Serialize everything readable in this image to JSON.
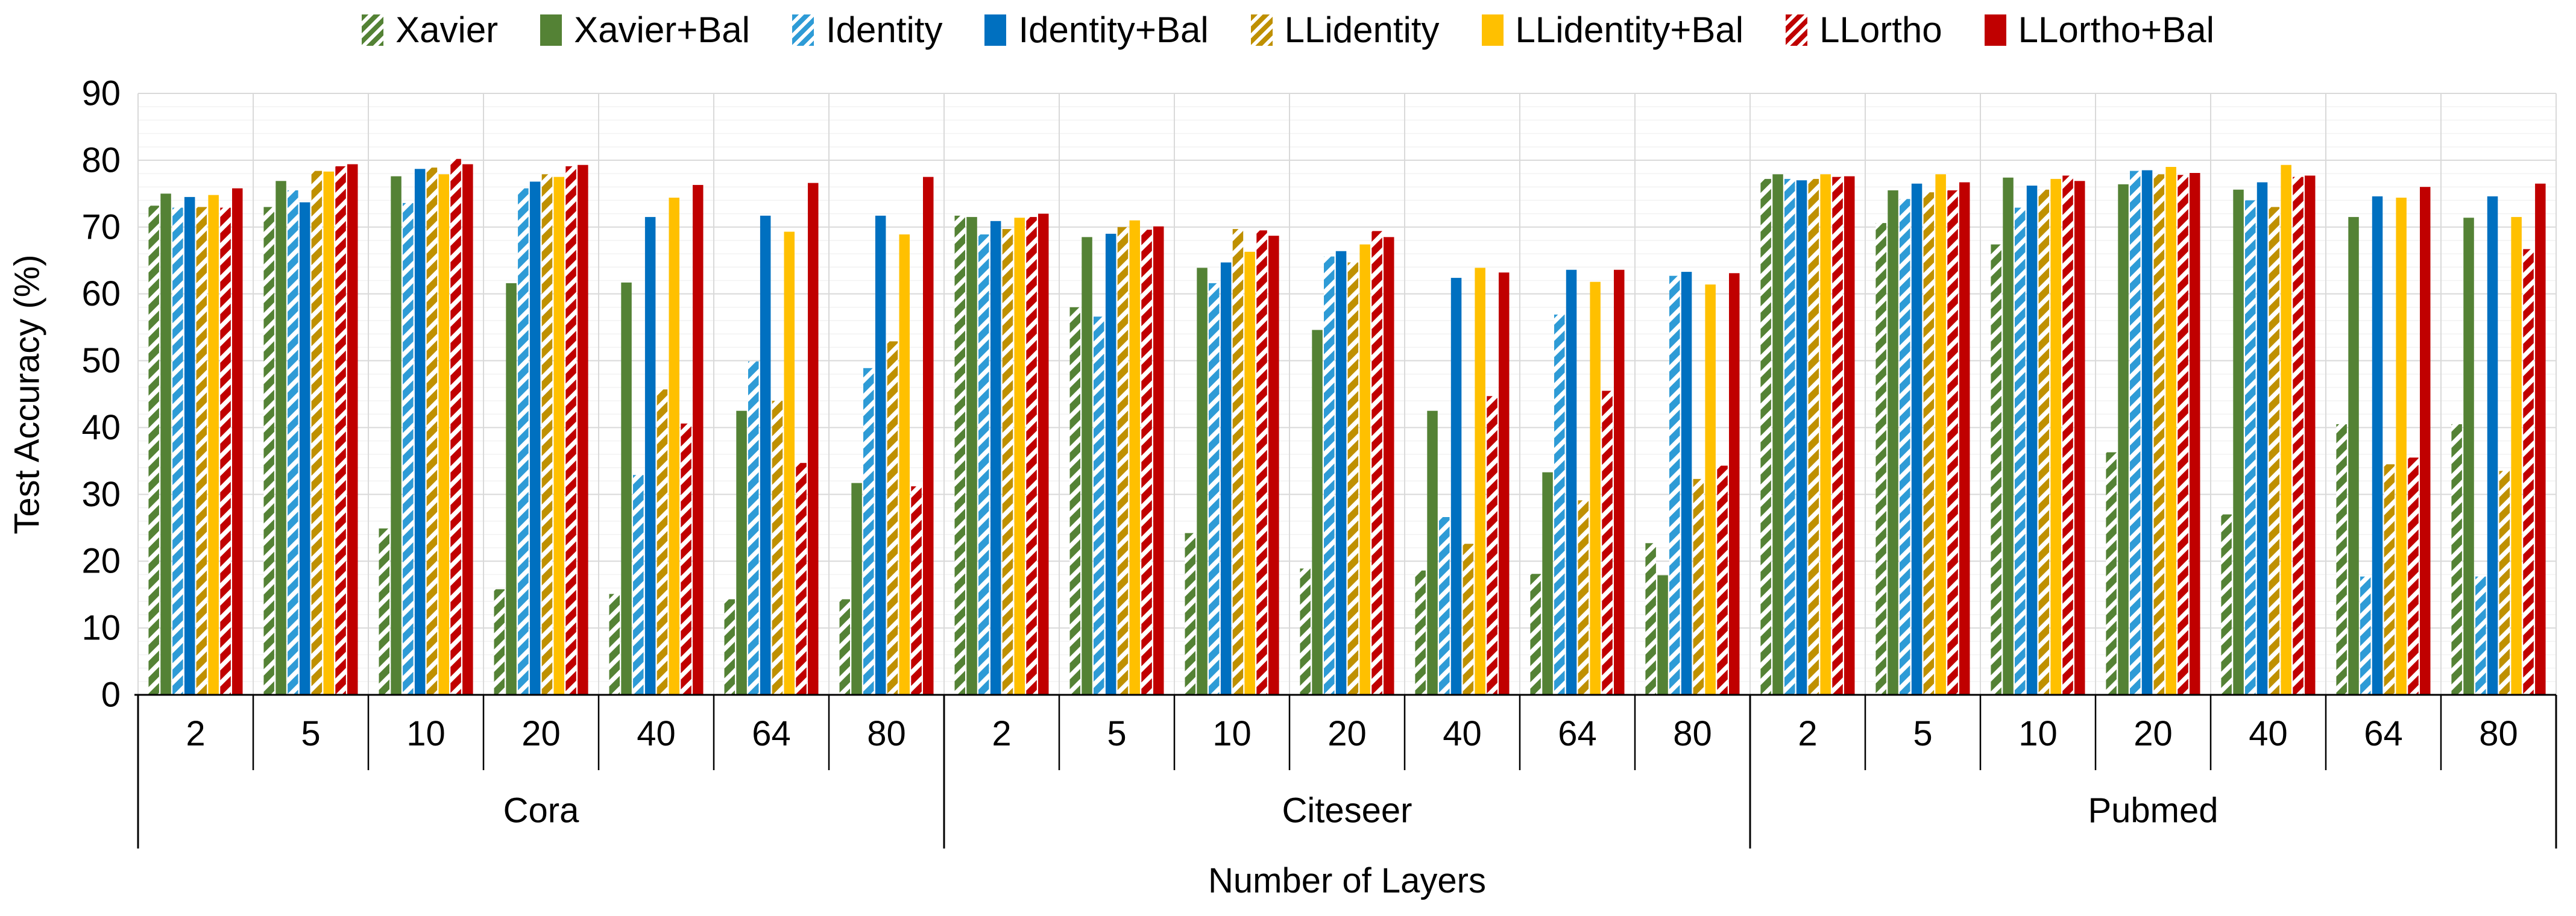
{
  "chart_data": {
    "type": "bar",
    "title": "",
    "ylabel": "Test Accuracy (%)",
    "xlabel": "Number of Layers",
    "ylim": [
      0,
      90
    ],
    "y_major_step": 10,
    "y_minor_step": 2,
    "y_ticks": [
      0,
      10,
      20,
      30,
      40,
      50,
      60,
      70,
      80,
      90
    ],
    "grid": "on",
    "legend_position": "top",
    "datasets": [
      "Cora",
      "Citeseer",
      "Pubmed"
    ],
    "layers": [
      "2",
      "5",
      "10",
      "20",
      "40",
      "64",
      "80"
    ],
    "series": [
      {
        "name": "Xavier",
        "style": "hatch",
        "color": "#548235",
        "values": {
          "Cora": [
            73.2,
            73.0,
            24.9,
            15.8,
            15.1,
            14.3,
            14.3
          ],
          "Citeseer": [
            71.7,
            58.0,
            24.2,
            18.9,
            18.6,
            18.1,
            22.7
          ],
          "Pubmed": [
            77.2,
            70.6,
            67.4,
            36.3,
            27.0,
            40.5,
            40.5
          ]
        }
      },
      {
        "name": "Xavier+Bal",
        "style": "solid",
        "color": "#548235",
        "values": {
          "Cora": [
            75.0,
            76.9,
            77.6,
            61.6,
            61.7,
            42.5,
            31.7
          ],
          "Citeseer": [
            71.5,
            68.5,
            63.9,
            54.6,
            42.5,
            33.3,
            17.9
          ],
          "Pubmed": [
            77.9,
            75.5,
            77.4,
            76.4,
            75.6,
            71.5,
            71.4
          ]
        }
      },
      {
        "name": "Identity",
        "style": "hatch",
        "color": "#2E9BD6",
        "values": {
          "Cora": [
            72.9,
            75.5,
            73.6,
            75.8,
            32.9,
            49.9,
            48.9
          ],
          "Citeseer": [
            68.9,
            56.6,
            61.6,
            65.6,
            26.6,
            56.9,
            62.7
          ],
          "Pubmed": [
            77.2,
            74.2,
            72.9,
            78.4,
            74.0,
            17.7,
            17.7
          ]
        }
      },
      {
        "name": "Identity+Bal",
        "style": "solid",
        "color": "#0070C0",
        "values": {
          "Cora": [
            74.5,
            73.7,
            78.7,
            76.8,
            71.5,
            71.7,
            71.7
          ],
          "Citeseer": [
            70.9,
            69.0,
            64.7,
            66.4,
            62.4,
            63.6,
            63.3
          ],
          "Pubmed": [
            77.0,
            76.5,
            76.2,
            78.5,
            76.7,
            74.6,
            74.6
          ]
        }
      },
      {
        "name": "LLidentity",
        "style": "hatch",
        "color": "#BF9000",
        "values": {
          "Cora": [
            73.0,
            78.4,
            78.9,
            77.9,
            45.7,
            44.0,
            52.9
          ],
          "Citeseer": [
            69.7,
            70.0,
            69.7,
            64.7,
            22.6,
            29.1,
            32.3
          ],
          "Pubmed": [
            77.2,
            75.2,
            75.6,
            77.9,
            73.0,
            34.5,
            33.5
          ]
        }
      },
      {
        "name": "LLidentity+Bal",
        "style": "solid",
        "color": "#FFC000",
        "values": {
          "Cora": [
            74.8,
            78.3,
            77.9,
            77.5,
            74.4,
            69.3,
            68.9
          ],
          "Citeseer": [
            71.4,
            71.0,
            66.3,
            67.4,
            63.9,
            61.8,
            61.4
          ],
          "Pubmed": [
            77.9,
            77.9,
            77.2,
            79.0,
            79.3,
            74.4,
            71.5
          ]
        }
      },
      {
        "name": "LLortho",
        "style": "hatch",
        "color": "#C00000",
        "values": {
          "Cora": [
            72.9,
            79.1,
            80.2,
            79.1,
            40.6,
            34.7,
            31.2
          ],
          "Citeseer": [
            71.5,
            69.6,
            69.5,
            69.4,
            44.7,
            45.5,
            34.3
          ],
          "Pubmed": [
            77.5,
            75.5,
            77.7,
            77.8,
            77.5,
            35.5,
            66.7
          ]
        }
      },
      {
        "name": "LLortho+Bal",
        "style": "solid",
        "color": "#C00000",
        "values": {
          "Cora": [
            75.8,
            79.4,
            79.4,
            79.3,
            76.3,
            76.6,
            77.5
          ],
          "Citeseer": [
            72.0,
            70.1,
            68.7,
            68.5,
            63.2,
            63.6,
            63.1
          ],
          "Pubmed": [
            77.6,
            76.7,
            76.9,
            78.1,
            77.7,
            76.0,
            76.5
          ]
        }
      }
    ],
    "style_colors": {
      "major_gridline": "#D9D9D9",
      "minor_gridline": "#F2F2F2",
      "axis_line": "#000000"
    }
  }
}
